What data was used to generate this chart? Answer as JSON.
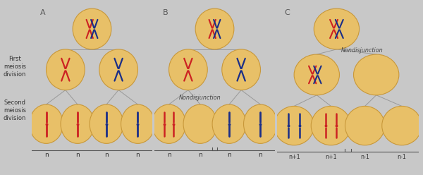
{
  "bg_color": "#c8c8c8",
  "panel_bg": "#e8e8e8",
  "cell_color": "#e8c068",
  "cell_edge": "#c8983a",
  "line_color": "#999999",
  "red_chr": "#cc2222",
  "blue_chr": "#1a2e88",
  "left_labels": [
    "First\nmeiosis\ndivision",
    "Second\nmeiosis\ndivision"
  ],
  "bottom_labels_A": [
    "n",
    "n",
    "n",
    "n"
  ],
  "bottom_labels_B": [
    "n",
    "n",
    "n",
    "n"
  ],
  "bottom_labels_C": [
    "n+1",
    "n+1",
    "n-1",
    "n-1"
  ],
  "panel_letters": [
    "A",
    "B",
    "C"
  ]
}
